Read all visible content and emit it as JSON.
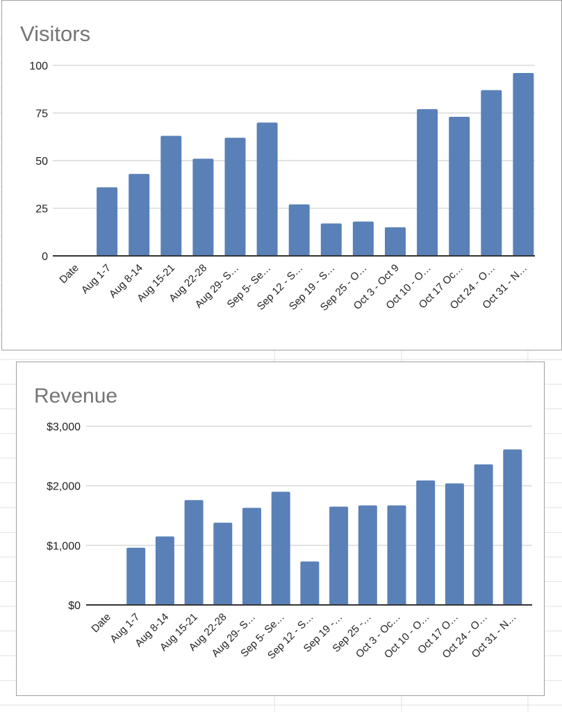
{
  "colors": {
    "bar": "#5a80b8",
    "grid": "#d9d9d9",
    "axis": "#333333",
    "title": "#757575"
  },
  "chart_data": [
    {
      "type": "bar",
      "title": "Visitors",
      "categories": [
        "Date",
        "Aug 1-7",
        "Aug 8-14",
        "Aug 15-21",
        "Aug 22-28",
        "Aug 29- S…",
        "Sep 5- Se…",
        "Sep 12 - S…",
        "Sep 19 - S…",
        "Sep 25 - O…",
        "Oct 3 - Oct 9",
        "Oct 10 - O…",
        "Oct 17  Oc…",
        "Oct 24 - O…",
        "Oct 31 - N…"
      ],
      "values": [
        null,
        36,
        43,
        63,
        51,
        62,
        70,
        27,
        17,
        18,
        15,
        77,
        73,
        87,
        96
      ],
      "ylim": [
        0,
        100
      ],
      "yticks": [
        0,
        25,
        50,
        75,
        100
      ],
      "ytick_labels": [
        "0",
        "25",
        "50",
        "75",
        "100"
      ],
      "grid": true,
      "legend": "none"
    },
    {
      "type": "bar",
      "title": "Revenue",
      "categories": [
        "Date",
        "Aug 1-7",
        "Aug 8-14",
        "Aug 15-21",
        "Aug 22-28",
        "Aug 29- S…",
        "Sep 5- Se…",
        "Sep 12 - S…",
        "Sep 19 -…",
        "Sep 25 -…",
        "Oct 3 - Oc…",
        "Oct 10 - O…",
        "Oct 17  O…",
        "Oct 24 - O…",
        "Oct 31 - N…"
      ],
      "values": [
        null,
        960,
        1150,
        1760,
        1380,
        1630,
        1900,
        730,
        1650,
        1670,
        1670,
        2090,
        2040,
        2360,
        2610
      ],
      "ylim": [
        0,
        3000
      ],
      "yticks": [
        0,
        1000,
        2000,
        3000
      ],
      "ytick_labels": [
        "$0",
        "$1,000",
        "$2,000",
        "$3,000"
      ],
      "grid": true,
      "legend": "none"
    }
  ]
}
